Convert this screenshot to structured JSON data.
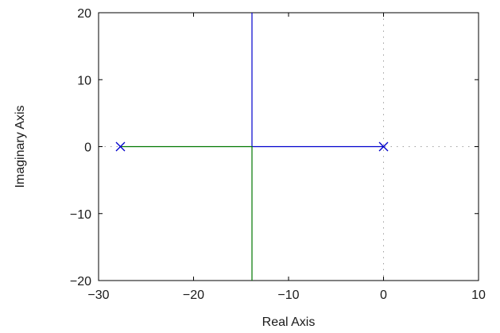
{
  "chart_data": {
    "type": "root-locus",
    "xlabel": "Real Axis",
    "ylabel": "Imaginary Axis",
    "xlim": [
      -30,
      10
    ],
    "ylim": [
      -20,
      20
    ],
    "x_ticks": [
      -30,
      -20,
      -10,
      0,
      10
    ],
    "y_ticks": [
      -20,
      -10,
      0,
      10,
      20
    ],
    "x_tick_labels": [
      "−30",
      "−20",
      "−10",
      "0",
      "10"
    ],
    "y_tick_labels": [
      "−20",
      "−10",
      "0",
      "10",
      "20"
    ],
    "grid": false,
    "poles": [
      {
        "re": -27.7,
        "im": 0
      },
      {
        "re": 0,
        "im": 0
      }
    ],
    "series": [
      {
        "color": "#0000cc",
        "points": [
          [
            0,
            0
          ],
          [
            -13.85,
            0
          ],
          [
            -13.85,
            20
          ]
        ]
      },
      {
        "color": "#007700",
        "points": [
          [
            -27.7,
            0
          ],
          [
            -13.85,
            0
          ],
          [
            -13.85,
            -20
          ]
        ]
      }
    ],
    "reference_lines": {
      "style": "dotted",
      "color": "#a0a0a0",
      "vertical_at_x": 0,
      "horizontal_at_y": 0
    }
  }
}
